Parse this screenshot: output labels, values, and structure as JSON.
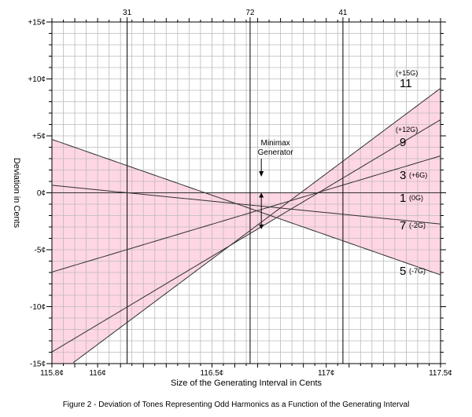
{
  "chart_data": {
    "type": "line",
    "xlabel": "Size of the Generating Interval in Cents",
    "ylabel": "Deviation in Cents",
    "xlim": [
      115.8,
      117.5
    ],
    "ylim": [
      -15,
      15
    ],
    "grid": true,
    "x_tick_labels": [
      {
        "value": 115.8,
        "label": "115.8¢"
      },
      {
        "value": 116.0,
        "label": "116¢"
      },
      {
        "value": 116.5,
        "label": "116.5¢"
      },
      {
        "value": 117.0,
        "label": "117¢"
      },
      {
        "value": 117.5,
        "label": "117.5¢"
      }
    ],
    "y_tick_labels": [
      {
        "value": 15,
        "label": "+15¢"
      },
      {
        "value": 10,
        "label": "+10¢"
      },
      {
        "value": 5,
        "label": "+5¢"
      },
      {
        "value": 0,
        "label": "0¢"
      },
      {
        "value": -5,
        "label": "-5¢"
      },
      {
        "value": -10,
        "label": "-10¢"
      },
      {
        "value": -15,
        "label": "-15¢"
      }
    ],
    "top_markers": [
      {
        "value": 116.129,
        "label": "31"
      },
      {
        "value": 116.667,
        "label": "72"
      },
      {
        "value": 117.073,
        "label": "41"
      }
    ],
    "series": [
      {
        "harmonic": "1",
        "multiplier": "(0G)",
        "g": 0
      },
      {
        "harmonic": "3",
        "multiplier": "(+6G)",
        "g": 6
      },
      {
        "harmonic": "5",
        "multiplier": "(-7G)",
        "g": -7
      },
      {
        "harmonic": "7",
        "multiplier": "(-2G)",
        "g": -2
      },
      {
        "harmonic": "9",
        "multiplier": "(+12G)",
        "g": 12
      },
      {
        "harmonic": "11",
        "multiplier": "(+15G)",
        "g": 15
      }
    ],
    "minimax": {
      "label_line1": "Minimax",
      "label_line2": "Generator",
      "x": 116.716,
      "y_top": 0,
      "y_bottom": -3.2
    },
    "colors": {
      "fill": "#ffd6e3",
      "line": "#303030",
      "grid": "#bbbbbb"
    }
  },
  "caption": "Figure 2 - Deviation of Tones Representing Odd Harmonics as a Function of the Generating Interval"
}
